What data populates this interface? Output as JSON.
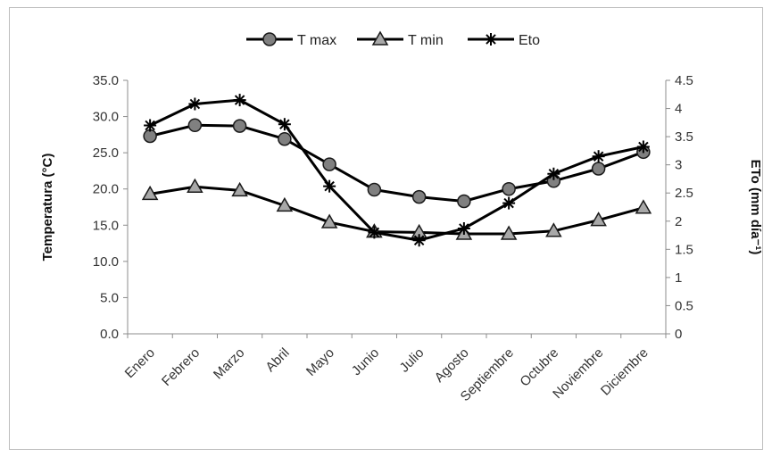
{
  "chart_data": {
    "type": "line",
    "categories": [
      "Enero",
      "Febrero",
      "Marzo",
      "Abril",
      "Mayo",
      "Junio",
      "Julio",
      "Agosto",
      "Septiembre",
      "Octubre",
      "Noviembre",
      "Diciembre"
    ],
    "ylabel": "Temperatura (°C)",
    "y2label": "ETo (mm día⁻¹)",
    "ylim": [
      0,
      35
    ],
    "y2lim": [
      0,
      4.5
    ],
    "yticks": [
      "0.0",
      "5.0",
      "10.0",
      "15.0",
      "20.0",
      "25.0",
      "30.0",
      "35.0"
    ],
    "y2ticks": [
      "0",
      "0.5",
      "1",
      "1.5",
      "2",
      "2.5",
      "3",
      "3.5",
      "4",
      "4.5"
    ],
    "legend_position": "top",
    "grid": false,
    "series": [
      {
        "name": "T max",
        "axis": "left",
        "marker": "circle",
        "color": "#808080",
        "values": [
          27.3,
          28.8,
          28.7,
          26.9,
          23.4,
          19.9,
          18.9,
          18.3,
          20.0,
          21.1,
          22.8,
          25.1
        ]
      },
      {
        "name": "T min",
        "axis": "left",
        "marker": "triangle",
        "color": "#a8a8a8",
        "values": [
          19.3,
          20.3,
          19.8,
          17.7,
          15.4,
          14.1,
          14.0,
          13.8,
          13.8,
          14.2,
          15.7,
          17.4
        ]
      },
      {
        "name": "Eto",
        "axis": "right",
        "marker": "star",
        "color": "#000000",
        "values": [
          3.7,
          4.08,
          4.15,
          3.72,
          2.62,
          1.8,
          1.66,
          1.87,
          2.32,
          2.84,
          3.15,
          3.32
        ]
      }
    ]
  }
}
